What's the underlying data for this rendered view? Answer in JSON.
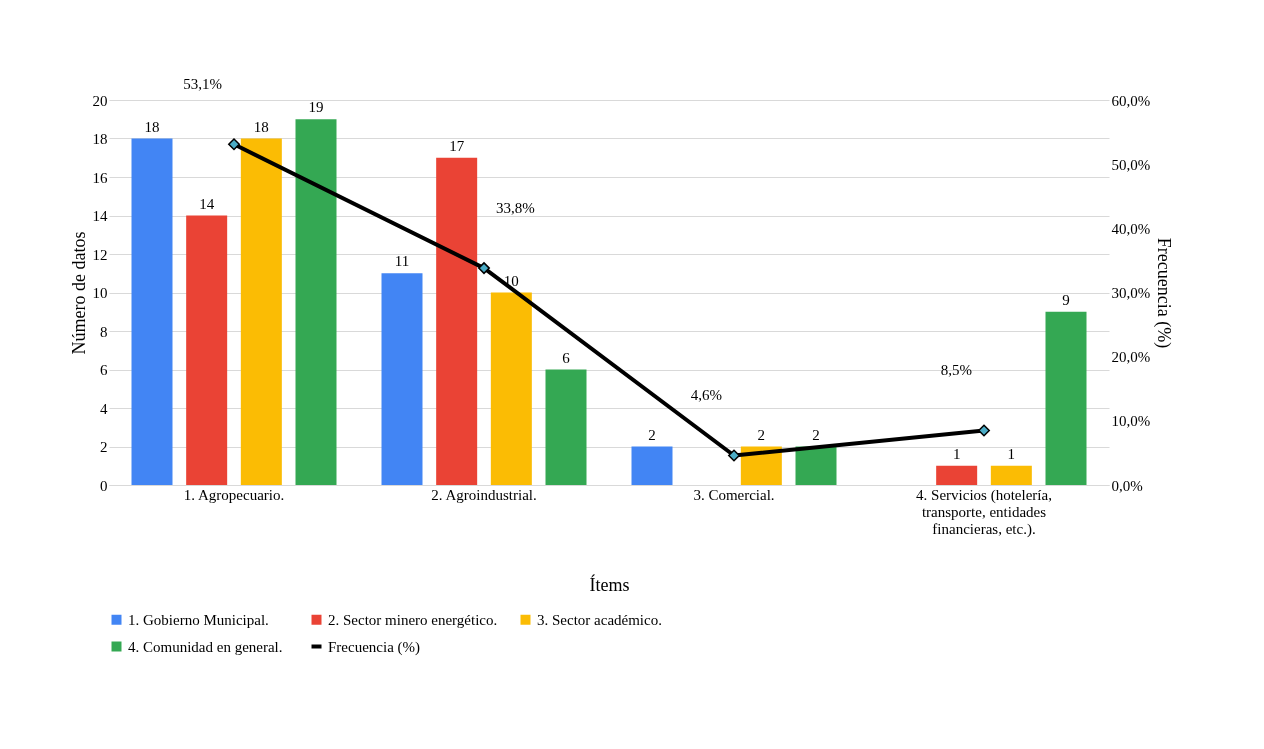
{
  "chart_data": {
    "type": "bar",
    "xlabel": "Ítems",
    "ylabel": "Número de datos",
    "y2label": "Frecuencia (%)",
    "categories": [
      "1. Agropecuario.",
      "2. Agroindustrial.",
      "3. Comercial.",
      "4. Servicios (hotelería, transporte, entidades financieras, etc.)."
    ],
    "series": [
      {
        "name": "1. Gobierno Municipal.",
        "color": "#4285f4",
        "values": [
          18,
          11,
          2,
          null
        ],
        "value_labels": [
          "18",
          "11",
          "2",
          null
        ]
      },
      {
        "name": "2. Sector minero energético.",
        "color": "#ea4335",
        "values": [
          14,
          17,
          null,
          1
        ],
        "value_labels": [
          "14",
          "17",
          null,
          "1"
        ]
      },
      {
        "name": "3. Sector académico.",
        "color": "#fbbc04",
        "values": [
          18,
          10,
          2,
          1
        ],
        "value_labels": [
          "18",
          "10",
          "2",
          "1"
        ]
      },
      {
        "name": "4. Comunidad en general.",
        "color": "#34a853",
        "values": [
          19,
          6,
          2,
          9
        ],
        "value_labels": [
          "19",
          "6",
          "2",
          "9"
        ]
      },
      {
        "name": "Frecuencia (%)",
        "type": "line",
        "axis": "y2",
        "color": "#000000",
        "values": [
          53.1,
          33.8,
          4.6,
          8.5
        ],
        "value_labels": [
          "53,1%",
          "33,8%",
          "4,6%",
          "8,5%"
        ]
      }
    ],
    "ylim": [
      0,
      20
    ],
    "yticks": [
      0,
      2,
      4,
      6,
      8,
      10,
      12,
      14,
      16,
      18,
      20
    ],
    "y2lim": [
      0,
      60
    ],
    "y2ticks": [
      {
        "value": 0,
        "label": "0,0%"
      },
      {
        "value": 10,
        "label": "10,0%"
      },
      {
        "value": 20,
        "label": "20,0%"
      },
      {
        "value": 30,
        "label": "30,0%"
      },
      {
        "value": 40,
        "label": "40,0%"
      },
      {
        "value": 50,
        "label": "50,0%"
      },
      {
        "value": 60,
        "label": "60,0%"
      }
    ],
    "grid": "y",
    "legend": "bottom",
    "marker": "diamond"
  }
}
